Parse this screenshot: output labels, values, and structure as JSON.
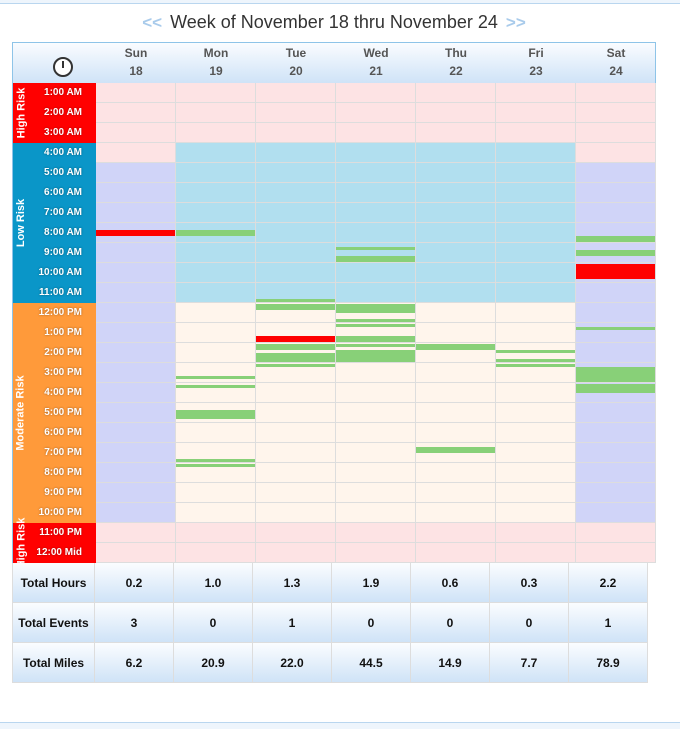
{
  "title": {
    "prev": "<<",
    "text": "Week of November 18 thru November 24",
    "next": ">>"
  },
  "header_icon": "clock-icon",
  "days": [
    {
      "name": "Sun",
      "date": "18",
      "weekend": true
    },
    {
      "name": "Mon",
      "date": "19",
      "weekend": false
    },
    {
      "name": "Tue",
      "date": "20",
      "weekend": false
    },
    {
      "name": "Wed",
      "date": "21",
      "weekend": false
    },
    {
      "name": "Thu",
      "date": "22",
      "weekend": false
    },
    {
      "name": "Fri",
      "date": "23",
      "weekend": false
    },
    {
      "name": "Sat",
      "date": "24",
      "weekend": true
    }
  ],
  "hours": [
    "1:00 AM",
    "2:00 AM",
    "3:00 AM",
    "4:00 AM",
    "5:00 AM",
    "6:00 AM",
    "7:00 AM",
    "8:00 AM",
    "9:00 AM",
    "10:00 AM",
    "11:00 AM",
    "12:00 PM",
    "1:00 PM",
    "2:00 PM",
    "3:00 PM",
    "4:00 PM",
    "5:00 PM",
    "6:00 PM",
    "7:00 PM",
    "8:00 PM",
    "9:00 PM",
    "10:00 PM",
    "11:00 PM",
    "12:00 Mid"
  ],
  "zones": [
    {
      "label": "High Risk",
      "start": 0,
      "end": 3,
      "color": "#ff0000",
      "cell": "#fde3e4"
    },
    {
      "label": "Low Risk",
      "start": 3,
      "end": 11,
      "color": "#0a96c8",
      "cell": "#b1dfef"
    },
    {
      "label": "Moderate Risk",
      "start": 11,
      "end": 22,
      "color": "#ff9a3a",
      "cell": "#fff5ec"
    },
    {
      "label": "High Risk",
      "start": 22,
      "end": 24,
      "color": "#ff0000",
      "cell": "#fde3e4"
    }
  ],
  "weekend_cell_color": "#d0d4f8",
  "weekend_low_risk_start": 4,
  "colors": {
    "trip": "#88d078",
    "event": "#ff0000"
  },
  "trips": [
    {
      "day": 0,
      "start": 8.35,
      "end": 8.65,
      "type": "event"
    },
    {
      "day": 1,
      "start": 8.35,
      "end": 8.65,
      "type": "trip"
    },
    {
      "day": 1,
      "start": 15.65,
      "end": 15.8,
      "type": "trip"
    },
    {
      "day": 1,
      "start": 16.1,
      "end": 16.25,
      "type": "trip"
    },
    {
      "day": 1,
      "start": 17.35,
      "end": 17.8,
      "type": "trip"
    },
    {
      "day": 1,
      "start": 19.8,
      "end": 19.95,
      "type": "trip"
    },
    {
      "day": 1,
      "start": 20.05,
      "end": 20.2,
      "type": "trip"
    },
    {
      "day": 2,
      "start": 11.8,
      "end": 11.95,
      "type": "trip"
    },
    {
      "day": 2,
      "start": 12.05,
      "end": 12.35,
      "type": "trip"
    },
    {
      "day": 2,
      "start": 13.65,
      "end": 13.95,
      "type": "event"
    },
    {
      "day": 2,
      "start": 14.05,
      "end": 14.35,
      "type": "trip"
    },
    {
      "day": 2,
      "start": 14.5,
      "end": 14.95,
      "type": "trip"
    },
    {
      "day": 2,
      "start": 15.05,
      "end": 15.2,
      "type": "trip"
    },
    {
      "day": 3,
      "start": 9.2,
      "end": 9.35,
      "type": "trip"
    },
    {
      "day": 3,
      "start": 9.65,
      "end": 9.95,
      "type": "trip"
    },
    {
      "day": 3,
      "start": 12.05,
      "end": 12.5,
      "type": "trip"
    },
    {
      "day": 3,
      "start": 12.8,
      "end": 12.95,
      "type": "trip"
    },
    {
      "day": 3,
      "start": 13.05,
      "end": 13.2,
      "type": "trip"
    },
    {
      "day": 3,
      "start": 13.65,
      "end": 13.95,
      "type": "trip"
    },
    {
      "day": 3,
      "start": 14.05,
      "end": 14.2,
      "type": "trip"
    },
    {
      "day": 3,
      "start": 14.35,
      "end": 14.95,
      "type": "trip"
    },
    {
      "day": 4,
      "start": 14.05,
      "end": 14.35,
      "type": "trip"
    },
    {
      "day": 4,
      "start": 19.2,
      "end": 19.5,
      "type": "trip"
    },
    {
      "day": 5,
      "start": 14.35,
      "end": 14.5,
      "type": "trip"
    },
    {
      "day": 5,
      "start": 14.8,
      "end": 14.95,
      "type": "trip"
    },
    {
      "day": 5,
      "start": 15.05,
      "end": 15.2,
      "type": "trip"
    },
    {
      "day": 6,
      "start": 8.65,
      "end": 8.95,
      "type": "trip"
    },
    {
      "day": 6,
      "start": 9.35,
      "end": 9.65,
      "type": "trip"
    },
    {
      "day": 6,
      "start": 10.05,
      "end": 10.8,
      "type": "event"
    },
    {
      "day": 6,
      "start": 13.2,
      "end": 13.35,
      "type": "trip"
    },
    {
      "day": 6,
      "start": 15.2,
      "end": 15.95,
      "type": "trip"
    },
    {
      "day": 6,
      "start": 16.05,
      "end": 16.5,
      "type": "trip"
    }
  ],
  "summary": [
    {
      "label": "Total Hours",
      "values": [
        "0.2",
        "1.0",
        "1.3",
        "1.9",
        "0.6",
        "0.3",
        "2.2"
      ]
    },
    {
      "label": "Total Events",
      "values": [
        "3",
        "0",
        "1",
        "0",
        "0",
        "0",
        "1"
      ]
    },
    {
      "label": "Total Miles",
      "values": [
        "6.2",
        "20.9",
        "22.0",
        "44.5",
        "14.9",
        "7.7",
        "78.9"
      ]
    }
  ]
}
